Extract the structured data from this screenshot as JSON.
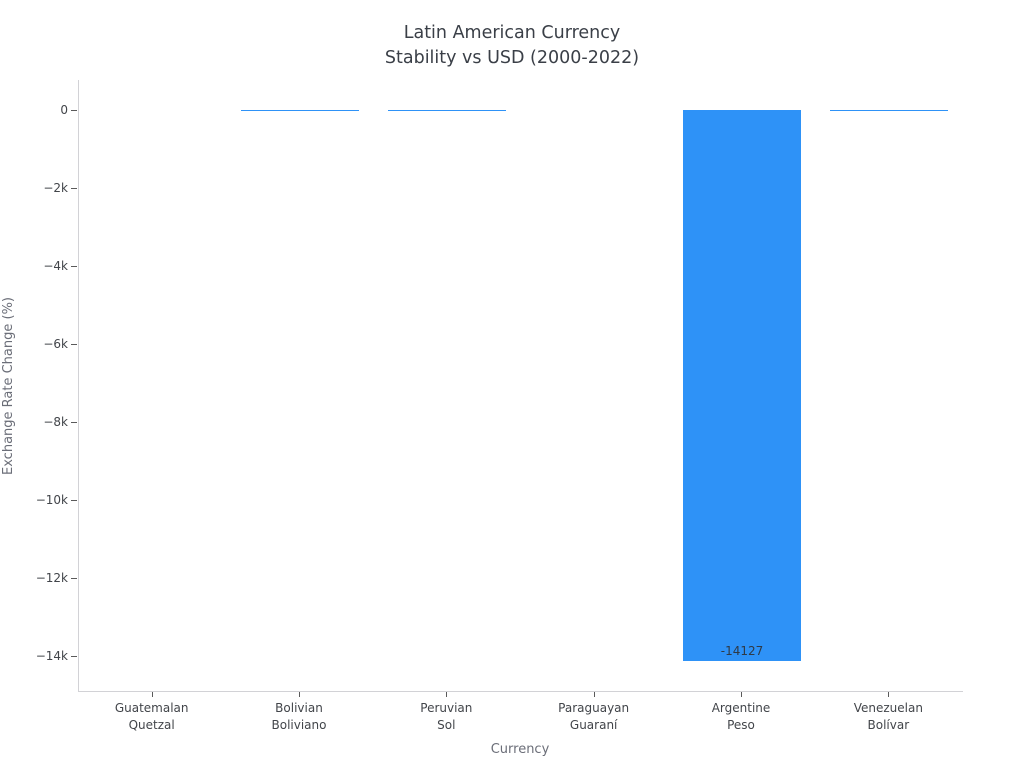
{
  "title": {
    "line1": "Latin American Currency",
    "line2": "Stability vs USD (2000-2022)"
  },
  "chart_data": {
    "type": "bar",
    "title": "Latin American Currency Stability vs USD (2000-2022)",
    "xlabel": "Currency",
    "ylabel": "Exchange Rate Change (%)",
    "categories": [
      "Guatemalan Quetzal",
      "Bolivian Boliviano",
      "Peruvian Sol",
      "Paraguayan Guaraní",
      "Argentine Peso",
      "Venezuelan Bolívar"
    ],
    "categories_two_line": [
      [
        "Guatemalan",
        "Quetzal"
      ],
      [
        "Bolivian",
        "Boliviano"
      ],
      [
        "Peruvian",
        "Sol"
      ],
      [
        "Paraguayan",
        "Guaraní"
      ],
      [
        "Argentine",
        "Peso"
      ],
      [
        "Venezuelan",
        "Bolívar"
      ]
    ],
    "values": [
      -1,
      -12,
      -36,
      -2,
      -14127,
      -3
    ],
    "bar_value_labels": [
      "",
      "",
      "",
      "",
      "-14127",
      ""
    ],
    "y_ticks": [
      {
        "v": 0,
        "label": "0"
      },
      {
        "v": -2000,
        "label": "−2k"
      },
      {
        "v": -4000,
        "label": "−4k"
      },
      {
        "v": -6000,
        "label": "−6k"
      },
      {
        "v": -8000,
        "label": "−8k"
      },
      {
        "v": -10000,
        "label": "−10k"
      },
      {
        "v": -12000,
        "label": "−12k"
      },
      {
        "v": -14000,
        "label": "−14k"
      }
    ],
    "ylim": [
      769,
      -14897
    ],
    "bar_color": "#2e92f7",
    "grid": false,
    "legend": "none",
    "bar_width_fraction": 0.8
  }
}
